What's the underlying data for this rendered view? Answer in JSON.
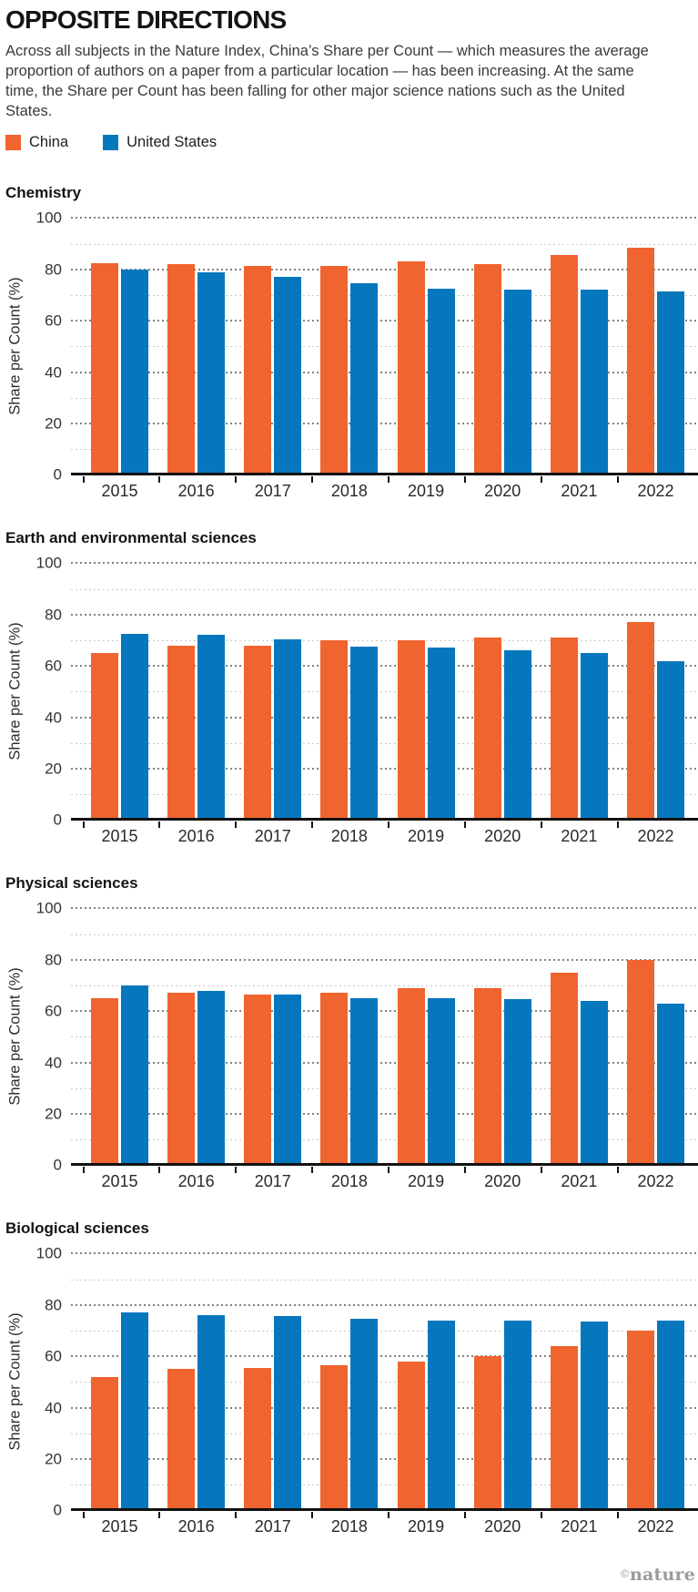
{
  "header": {
    "title": "OPPOSITE DIRECTIONS",
    "description": "Across all subjects in the Nature Index, China’s Share per Count — which measures the average proportion of authors on a paper from a particular location — has been increasing. At the same time, the Share per Count has been falling for other major science nations such as the United States."
  },
  "legend": [
    {
      "label": "China",
      "color": "#F0642F"
    },
    {
      "label": "United States",
      "color": "#0677BD"
    }
  ],
  "colors": {
    "china": "#F0642F",
    "united_states": "#0677BD",
    "axis": "#121212",
    "grid_major": "#828282",
    "grid_minor": "#c9c9c9",
    "credit_gray": "#9b9b9b"
  },
  "footer": {
    "credit_symbol": "©",
    "credit_name": "nature"
  },
  "chart_data": [
    {
      "type": "bar",
      "title": "Chemistry",
      "xlabel": "",
      "ylabel": "Share per Count (%)",
      "ylim": [
        0,
        100
      ],
      "yticks": [
        0,
        20,
        40,
        60,
        80,
        100
      ],
      "gridlines_every": 10,
      "grid": true,
      "legend_position": "shared-top",
      "categories": [
        "2015",
        "2016",
        "2017",
        "2018",
        "2019",
        "2020",
        "2021",
        "2022"
      ],
      "series": [
        {
          "name": "China",
          "color": "#F0642F",
          "values": [
            82.5,
            82,
            81.5,
            81.5,
            83,
            82,
            85.5,
            88.5
          ]
        },
        {
          "name": "United States",
          "color": "#0677BD",
          "values": [
            80,
            79,
            77,
            74.5,
            72.5,
            72,
            72,
            71.5
          ]
        }
      ]
    },
    {
      "type": "bar",
      "title": "Earth and environmental sciences",
      "xlabel": "",
      "ylabel": "Share per Count (%)",
      "ylim": [
        0,
        100
      ],
      "yticks": [
        0,
        20,
        40,
        60,
        80,
        100
      ],
      "gridlines_every": 10,
      "grid": true,
      "legend_position": "shared-top",
      "categories": [
        "2015",
        "2016",
        "2017",
        "2018",
        "2019",
        "2020",
        "2021",
        "2022"
      ],
      "series": [
        {
          "name": "China",
          "color": "#F0642F",
          "values": [
            65,
            68,
            68,
            70,
            70,
            71,
            71,
            77
          ]
        },
        {
          "name": "United States",
          "color": "#0677BD",
          "values": [
            72.5,
            72,
            70.5,
            67.5,
            67,
            66,
            65,
            62
          ]
        }
      ]
    },
    {
      "type": "bar",
      "title": "Physical sciences",
      "xlabel": "",
      "ylabel": "Share per Count (%)",
      "ylim": [
        0,
        100
      ],
      "yticks": [
        0,
        20,
        40,
        60,
        80,
        100
      ],
      "gridlines_every": 10,
      "grid": true,
      "legend_position": "shared-top",
      "categories": [
        "2015",
        "2016",
        "2017",
        "2018",
        "2019",
        "2020",
        "2021",
        "2022"
      ],
      "series": [
        {
          "name": "China",
          "color": "#F0642F",
          "values": [
            65,
            67,
            66.5,
            67,
            69,
            69,
            75,
            80
          ]
        },
        {
          "name": "United States",
          "color": "#0677BD",
          "values": [
            70,
            68,
            66.5,
            65,
            65,
            64.5,
            64,
            63
          ]
        }
      ]
    },
    {
      "type": "bar",
      "title": "Biological sciences",
      "xlabel": "",
      "ylabel": "Share per Count (%)",
      "ylim": [
        0,
        100
      ],
      "yticks": [
        0,
        20,
        40,
        60,
        80,
        100
      ],
      "gridlines_every": 10,
      "grid": true,
      "legend_position": "shared-top",
      "categories": [
        "2015",
        "2016",
        "2017",
        "2018",
        "2019",
        "2020",
        "2021",
        "2022"
      ],
      "series": [
        {
          "name": "China",
          "color": "#F0642F",
          "values": [
            52,
            55,
            55.5,
            56.5,
            58,
            60,
            64,
            70
          ]
        },
        {
          "name": "United States",
          "color": "#0677BD",
          "values": [
            77,
            76,
            75.5,
            74.5,
            74,
            74,
            73.5,
            74
          ]
        }
      ]
    }
  ]
}
